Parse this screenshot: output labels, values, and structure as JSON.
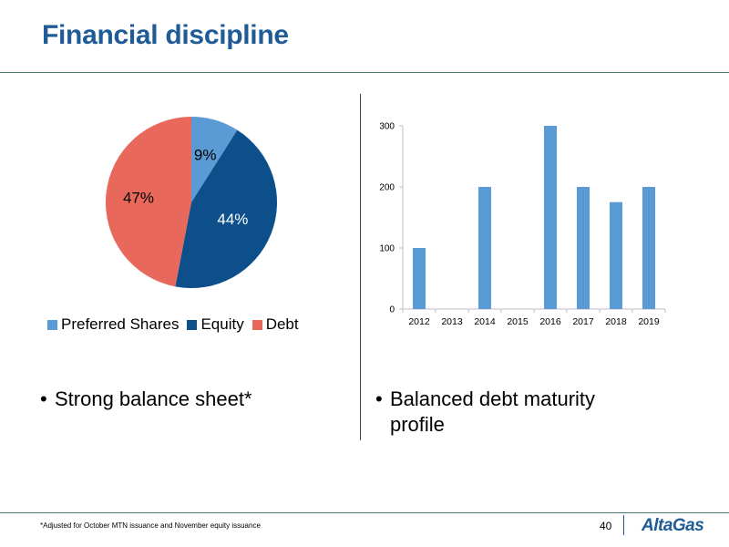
{
  "slide": {
    "title": "Financial discipline",
    "left_bullet": "Strong balance sheet*",
    "right_bullet_line1": "Balanced debt maturity",
    "right_bullet_line2": "profile",
    "footnote": "*Adjusted for October MTN issuance and November equity issuance",
    "page_number": "40",
    "logo_text": "AltaGas",
    "bullet_symbol": "•"
  },
  "chart_data": [
    {
      "type": "pie",
      "title": "",
      "series": [
        {
          "name": "Preferred Shares",
          "value": 9,
          "label": "9%",
          "color": "#5b9bd5"
        },
        {
          "name": "Equity",
          "value": 44,
          "label": "44%",
          "color": "#0d4f8b"
        },
        {
          "name": "Debt",
          "value": 47,
          "label": "47%",
          "color": "#e8695b"
        }
      ],
      "legend_position": "bottom",
      "start_angle": "12 o'clock",
      "direction": "clockwise"
    },
    {
      "type": "bar",
      "title": "",
      "xlabel": "",
      "ylabel": "",
      "categories": [
        "2012",
        "2013",
        "2014",
        "2015",
        "2016",
        "2017",
        "2018",
        "2019"
      ],
      "values": [
        100,
        0,
        200,
        0,
        300,
        200,
        175,
        200
      ],
      "ylim": [
        0,
        300
      ],
      "yticks": [
        "0",
        "100",
        "200",
        "300"
      ],
      "bar_color": "#5b9bd5",
      "grid": false,
      "legend": false
    }
  ]
}
